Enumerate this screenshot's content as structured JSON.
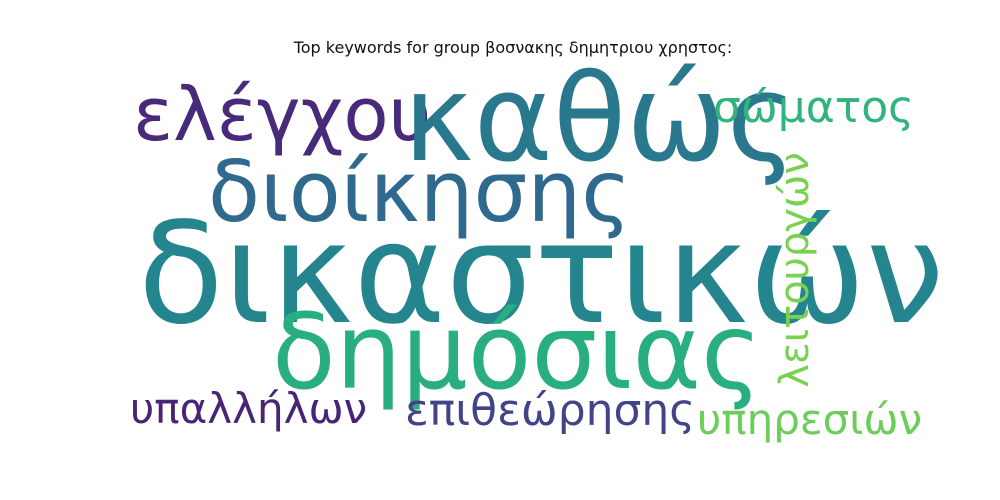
{
  "title": "Top keywords for group βοσνακης δημητριου χρηστος:",
  "words": [
    {
      "text": "ελέγχου",
      "color": "#472a7a"
    },
    {
      "text": "καθώς",
      "color": "#2a788e"
    },
    {
      "text": "σώματος",
      "color": "#2fb47c"
    },
    {
      "text": "διοίκησης",
      "color": "#30698e"
    },
    {
      "text": "δικαστικών",
      "color": "#25858e"
    },
    {
      "text": "δημόσιας",
      "color": "#28ae80"
    },
    {
      "text": "υπαλλήλων",
      "color": "#482475"
    },
    {
      "text": "επιθεώρησης",
      "color": "#414487"
    },
    {
      "text": "υπηρεσιών",
      "color": "#6ccd5a"
    },
    {
      "text": "λειτουργών",
      "color": "#7ad151"
    }
  ]
}
